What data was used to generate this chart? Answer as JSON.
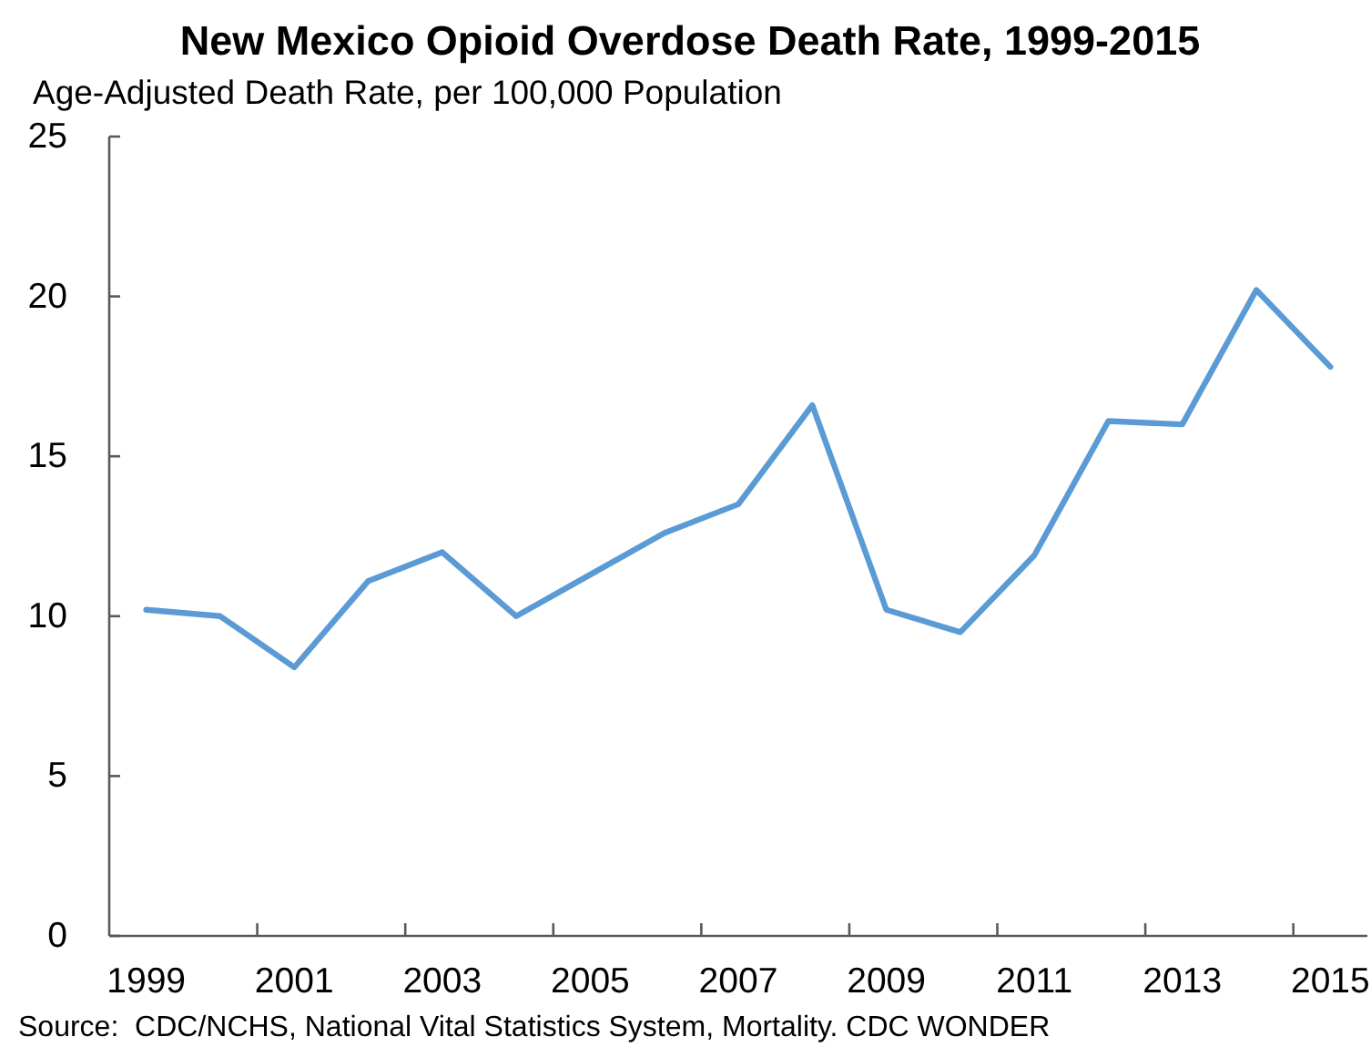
{
  "chart_data": {
    "type": "line",
    "title": "New Mexico Opioid Overdose Death Rate, 1999-2015",
    "ylabel": "Age-Adjusted Death Rate, per 100,000 Population",
    "categories": [
      "1999",
      null,
      "2001",
      null,
      "2003",
      null,
      "2005",
      null,
      "2007",
      null,
      "2009",
      null,
      "2011",
      null,
      "2013",
      null,
      "2015"
    ],
    "series": [
      {
        "color": "#5b9bd5",
        "values": [
          10.2,
          10.0,
          8.4,
          11.1,
          12.0,
          10.0,
          11.3,
          12.6,
          13.5,
          16.6,
          10.2,
          9.5,
          11.9,
          16.1,
          16.0,
          20.2,
          17.8
        ]
      }
    ],
    "ylim": [
      0,
      25
    ],
    "yticks": [
      0,
      5,
      10,
      15,
      20,
      25
    ],
    "annotations": [
      "Source:  CDC/NCHS, National Vital Statistics System, Mortality. CDC WONDER"
    ]
  }
}
